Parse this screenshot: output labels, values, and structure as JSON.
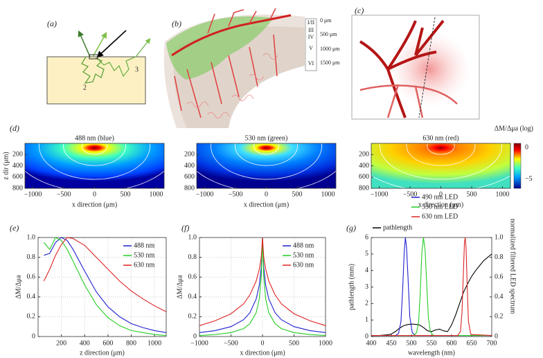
{
  "diagrams": {
    "a": {
      "label": "(a)",
      "path_labels": [
        "2",
        "3"
      ]
    },
    "b": {
      "label": "(b)",
      "layers": [
        "I/II",
        "III",
        "IV",
        "V",
        "VI"
      ],
      "depths": [
        "0 μm",
        "500 μm",
        "1000 μm",
        "1500 μm"
      ]
    },
    "c": {
      "label": "(c)"
    }
  },
  "chart_data": [
    {
      "type": "heatmap",
      "label": "(d)",
      "panels": [
        {
          "title": "488 nm (blue)"
        },
        {
          "title": "530 nm (green)"
        },
        {
          "title": "630 nm (red)"
        }
      ],
      "xlabel": "x direction (μm)",
      "ylabel": "z dir (μm)",
      "xlim": [
        -1130,
        1130
      ],
      "xticks": [
        {
          "value": -1000,
          "label": "−1000"
        },
        {
          "value": -500,
          "label": "−500"
        },
        0,
        500,
        1000
      ],
      "ylim": [
        0,
        800
      ],
      "yticks": [
        200,
        400,
        600,
        800
      ],
      "yinvert": true,
      "colorbar_label": "ΔM/Δμa (log)",
      "clim": [
        -6.5,
        0.7
      ],
      "cticks": [
        0,
        {
          "value": -5,
          "label": "−5"
        }
      ]
    },
    {
      "type": "line",
      "label": "(e)",
      "xlabel": "z direction (μm)",
      "ylabel": "ΔM/Δμa",
      "xlim": [
        0,
        1100
      ],
      "xticks": [
        200,
        400,
        600,
        800,
        1000
      ],
      "ylim": [
        0,
        1
      ],
      "yticks": [
        0,
        0.2,
        0.4,
        0.6,
        0.8,
        {
          "value": 1,
          "label": "1.0"
        }
      ],
      "grid": true,
      "legend": "upper right",
      "x": [
        50,
        100,
        150,
        200,
        250,
        300,
        400,
        500,
        600,
        700,
        800,
        900,
        1000,
        1100
      ],
      "series": [
        {
          "name": "488 nm",
          "color": "#1f1fd0",
          "values": [
            0.82,
            0.84,
            0.95,
            1.0,
            0.97,
            0.88,
            0.66,
            0.45,
            0.3,
            0.2,
            0.13,
            0.09,
            0.06,
            0.04
          ]
        },
        {
          "name": "530 nm",
          "color": "#22cc22",
          "values": [
            0.95,
            0.88,
            1.0,
            0.97,
            0.88,
            0.76,
            0.52,
            0.32,
            0.19,
            0.11,
            0.06,
            0.04,
            0.02,
            0.01
          ]
        },
        {
          "name": "630 nm",
          "color": "#dd2222",
          "values": [
            0.56,
            0.68,
            0.82,
            0.93,
            1.0,
            0.99,
            0.92,
            0.8,
            0.68,
            0.56,
            0.46,
            0.38,
            0.31,
            0.25
          ]
        }
      ]
    },
    {
      "type": "line",
      "label": "(f)",
      "xlabel": "x direction (μm)",
      "ylabel": "ΔM/Δμa",
      "xlim": [
        -1000,
        1000
      ],
      "xticks": [
        {
          "value": -1000,
          "label": "−1000"
        },
        {
          "value": -500,
          "label": "−500"
        },
        0,
        500,
        1000
      ],
      "ylim": [
        0,
        1
      ],
      "yticks": [
        0,
        0.2,
        0.4,
        0.6,
        0.8,
        {
          "value": 1,
          "label": "1.0"
        }
      ],
      "grid": true,
      "legend": "upper right",
      "x": [
        -1000,
        -750,
        -500,
        -300,
        -200,
        -100,
        -50,
        -20,
        0,
        20,
        50,
        100,
        200,
        300,
        500,
        750,
        1000
      ],
      "series": [
        {
          "name": "488 nm",
          "color": "#1f1fd0",
          "values": [
            0.04,
            0.06,
            0.1,
            0.17,
            0.24,
            0.38,
            0.52,
            0.7,
            1.0,
            0.7,
            0.52,
            0.38,
            0.24,
            0.17,
            0.1,
            0.06,
            0.04
          ]
        },
        {
          "name": "530 nm",
          "color": "#22cc22",
          "values": [
            0.01,
            0.02,
            0.04,
            0.08,
            0.13,
            0.24,
            0.38,
            0.6,
            1.0,
            0.6,
            0.38,
            0.24,
            0.13,
            0.08,
            0.04,
            0.02,
            0.01
          ]
        },
        {
          "name": "630 nm",
          "color": "#dd2222",
          "values": [
            0.11,
            0.16,
            0.23,
            0.33,
            0.42,
            0.56,
            0.68,
            0.8,
            1.0,
            0.8,
            0.68,
            0.56,
            0.42,
            0.33,
            0.23,
            0.16,
            0.11
          ]
        }
      ]
    },
    {
      "type": "line",
      "label": "(g)",
      "xlabel": "wavelength (nm)",
      "ylabel": "pathlength (mm)",
      "y2label": "normalized filtered LED spectrum",
      "xlim": [
        400,
        700
      ],
      "xticks": [
        400,
        450,
        500,
        550,
        600,
        650,
        700
      ],
      "ylim": [
        0,
        6
      ],
      "yticks": [
        0,
        1,
        2,
        3,
        4,
        5,
        6
      ],
      "y2lim": [
        0,
        1
      ],
      "y2ticks": [
        0,
        0.2,
        0.4,
        0.6,
        0.8,
        {
          "value": 1,
          "label": "1.0"
        }
      ],
      "grid": false,
      "legend": "above",
      "series": [
        {
          "name": "pathlength",
          "color": "#000000",
          "axis": "y",
          "x": [
            400,
            420,
            440,
            450,
            460,
            470,
            480,
            490,
            500,
            510,
            520,
            530,
            540,
            550,
            560,
            570,
            580,
            590,
            600,
            610,
            620,
            630,
            640,
            650,
            660,
            670,
            680,
            690,
            700
          ],
          "values": [
            0.05,
            0.06,
            0.1,
            0.15,
            0.3,
            0.5,
            0.65,
            0.72,
            0.75,
            0.74,
            0.7,
            0.55,
            0.35,
            0.3,
            0.4,
            0.45,
            0.35,
            0.3,
            0.7,
            1.3,
            2.0,
            2.7,
            3.2,
            3.65,
            4.0,
            4.3,
            4.6,
            4.8,
            5.0
          ]
        },
        {
          "name": "490 nm LED",
          "color": "#1f1fd0",
          "axis": "y2",
          "x": [
            400,
            460,
            468,
            474,
            478,
            482,
            485,
            488,
            492,
            496,
            502,
            510,
            700
          ],
          "values": [
            0.01,
            0.01,
            0.03,
            0.15,
            0.45,
            0.85,
            1.0,
            0.9,
            0.55,
            0.2,
            0.04,
            0.01,
            0.01
          ]
        },
        {
          "name": "530 nm LED",
          "color": "#22cc22",
          "axis": "y2",
          "x": [
            400,
            505,
            513,
            518,
            522,
            526,
            530,
            534,
            538,
            542,
            547,
            555,
            700
          ],
          "values": [
            0.01,
            0.01,
            0.04,
            0.15,
            0.45,
            0.85,
            1.0,
            0.88,
            0.55,
            0.2,
            0.05,
            0.01,
            0.01
          ]
        },
        {
          "name": "630 nm LED",
          "color": "#dd2222",
          "axis": "y2",
          "x": [
            400,
            615,
            622,
            626,
            629,
            632,
            634,
            636,
            639,
            642,
            648,
            700
          ],
          "values": [
            0.01,
            0.01,
            0.05,
            0.25,
            0.6,
            0.95,
            1.0,
            0.9,
            0.5,
            0.15,
            0.02,
            0.01
          ]
        }
      ]
    }
  ]
}
